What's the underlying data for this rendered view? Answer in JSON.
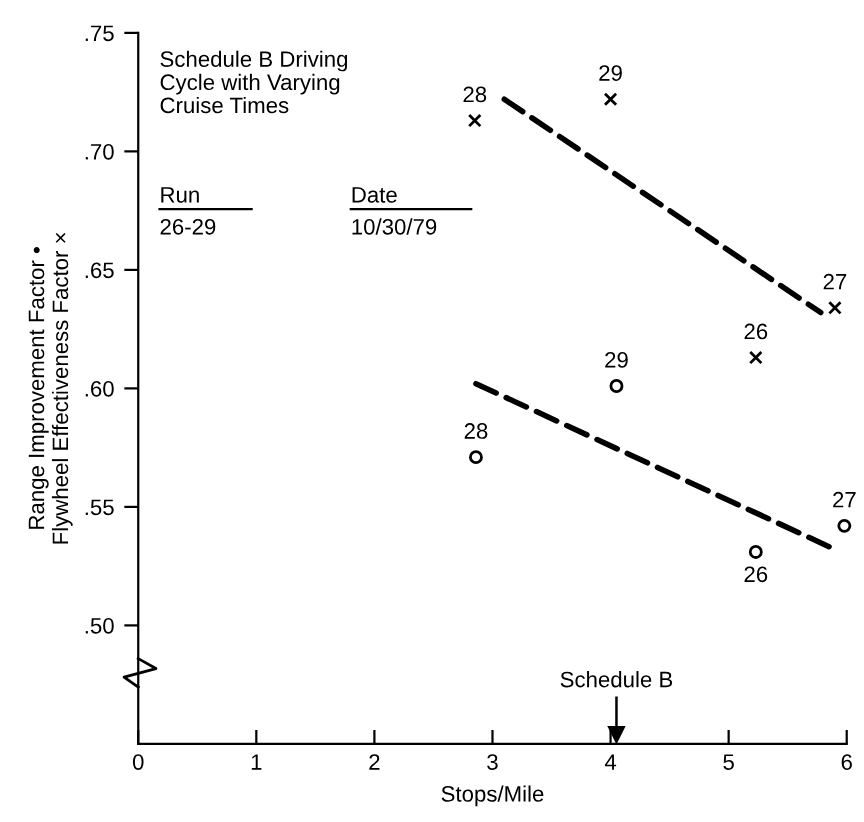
{
  "chart_data": {
    "type": "scatter",
    "title": "Schedule B Driving\nCycle with Varying\nCruise Times",
    "xlabel": "Stops/Mile",
    "ylabel": "Range Improvement Factor •\nFlywheel Effectiveness Factor ×",
    "xlim": [
      0,
      6
    ],
    "xticks": [
      0,
      1,
      2,
      3,
      4,
      5,
      6
    ],
    "ylim": [
      0.45,
      0.75
    ],
    "yticks": [
      {
        "value": 0.5,
        "label": ".50"
      },
      {
        "value": 0.55,
        "label": ".55"
      },
      {
        "value": 0.6,
        "label": ".60"
      },
      {
        "value": 0.65,
        "label": ".65"
      },
      {
        "value": 0.7,
        "label": ".70"
      },
      {
        "value": 0.75,
        "label": ".75"
      }
    ],
    "grid": false,
    "series": [
      {
        "marker": "cross",
        "color": "#000000",
        "x": [
          2.85,
          4.0,
          5.9,
          5.23
        ],
        "values": [
          0.713,
          0.722,
          0.634,
          0.613
        ]
      },
      {
        "marker": "circle",
        "color": "#000000",
        "x": [
          2.86,
          4.05,
          5.23,
          5.98
        ],
        "values": [
          0.571,
          0.601,
          0.531,
          0.542
        ]
      },
      {
        "type": "line",
        "line_style": "dashed",
        "marker": "none",
        "color": "#000000",
        "x": [
          3.1,
          5.78
        ],
        "values": [
          0.722,
          0.632
        ]
      },
      {
        "type": "line",
        "line_style": "dashed",
        "marker": "none",
        "color": "#000000",
        "x": [
          2.86,
          5.86
        ],
        "values": [
          0.602,
          0.533
        ]
      }
    ],
    "ref_lines": [
      {
        "axis": "x",
        "value": 4.05,
        "label": "Schedule B"
      }
    ],
    "annotations": [
      "Run",
      "26-29",
      "Date",
      "10/30/79",
      {
        "text": "28",
        "x": 2.85,
        "y": 0.713
      },
      {
        "text": "29",
        "x": 4.0,
        "y": 0.722
      },
      {
        "text": "27",
        "x": 5.9,
        "y": 0.634
      },
      {
        "text": "26",
        "x": 5.23,
        "y": 0.613
      },
      {
        "text": "28",
        "x": 2.86,
        "y": 0.571
      },
      {
        "text": "29",
        "x": 4.05,
        "y": 0.601
      },
      {
        "text": "26",
        "x": 5.23,
        "y": 0.531
      },
      {
        "text": "27",
        "x": 5.98,
        "y": 0.542
      }
    ]
  }
}
